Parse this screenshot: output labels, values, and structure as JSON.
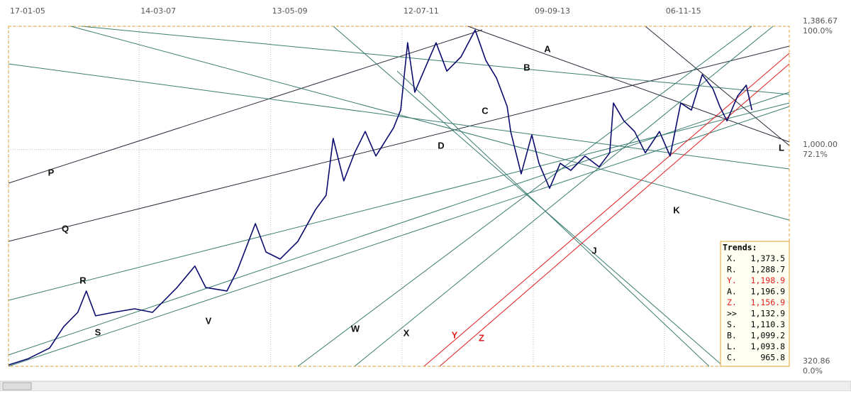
{
  "chart_data": {
    "type": "line",
    "x": [
      "2005-01-17",
      "2005-05-16",
      "2005-09-21",
      "2005-12-15",
      "2006-03-10",
      "2006-04-30",
      "2006-06-25",
      "2006-10-10",
      "2007-02-15",
      "2007-06-02",
      "2007-10-28",
      "2008-02-12",
      "2008-04-17",
      "2008-08-23",
      "2008-10-26",
      "2009-02-10",
      "2009-04-15",
      "2009-07-09",
      "2009-10-23",
      "2010-02-07",
      "2010-04-12",
      "2010-05-24",
      "2010-07-27",
      "2010-09-30",
      "2010-12-03",
      "2011-02-05",
      "2011-05-22",
      "2011-07-04",
      "2011-08-15",
      "2011-09-27",
      "2011-11-30",
      "2012-02-02",
      "2012-04-07",
      "2012-07-01",
      "2012-09-24",
      "2012-11-27",
      "2013-01-31",
      "2013-04-05",
      "2013-04-26",
      "2013-06-28",
      "2013-08-31",
      "2013-10-13",
      "2013-12-16",
      "2014-02-18",
      "2014-04-22",
      "2014-07-17",
      "2014-10-10",
      "2014-12-13",
      "2015-01-04",
      "2015-03-08",
      "2015-05-11",
      "2015-07-15",
      "2015-10-08",
      "2015-12-11",
      "2016-02-13",
      "2016-04-17",
      "2016-06-21",
      "2016-08-24",
      "2016-10-05",
      "2016-11-17",
      "2017-01-20",
      "2017-03-13",
      "2017-04-16"
    ],
    "series": [
      {
        "color": "#0b0b6e",
        "values": [
          325,
          345,
          378,
          445,
          490,
          557,
          479,
          490,
          501,
          490,
          568,
          635,
          568,
          557,
          623,
          768,
          679,
          657,
          712,
          812,
          857,
          1035,
          902,
          990,
          1057,
          980,
          1068,
          1124,
          1335,
          1180,
          1258,
          1335,
          1246,
          1291,
          1375,
          1280,
          1224,
          1135,
          1057,
          924,
          1046,
          957,
          879,
          957,
          935,
          980,
          946,
          990,
          1146,
          1090,
          1057,
          990,
          1057,
          980,
          1146,
          1124,
          1235,
          1191,
          1135,
          1090,
          1168,
          1202,
          1124
        ]
      }
    ],
    "xlim": [
      "2005-01-17",
      "2017-11-27"
    ],
    "xticks": [
      {
        "value": "2005-01-17",
        "label": "17-01-05"
      },
      {
        "value": "2007-03-14",
        "label": "14-03-07"
      },
      {
        "value": "2009-05-13",
        "label": "13-05-09"
      },
      {
        "value": "2011-07-12",
        "label": "12-07-11"
      },
      {
        "value": "2013-09-09",
        "label": "09-09-13"
      },
      {
        "value": "2015-11-06",
        "label": "06-11-15"
      }
    ],
    "ylim": [
      320.86,
      1386.67
    ],
    "yticks": [
      {
        "value": 320.86,
        "label": "320.86"
      },
      {
        "value": 1000,
        "label": "1,000.00"
      },
      {
        "value": 1386.67,
        "label": "1,386.67"
      }
    ],
    "ytick_percent_labels": [
      "0.0%",
      "72.1%",
      "100.0%"
    ],
    "grid": true,
    "annotations": [
      {
        "text": "A",
        "color": "#111"
      },
      {
        "text": "B",
        "color": "#111"
      },
      {
        "text": "C",
        "color": "#111"
      },
      {
        "text": "D",
        "color": "#111"
      },
      {
        "text": "L",
        "color": "#111"
      },
      {
        "text": "K",
        "color": "#111"
      },
      {
        "text": "J",
        "color": "#111"
      },
      {
        "text": "P",
        "color": "#111"
      },
      {
        "text": "Q",
        "color": "#111"
      },
      {
        "text": "R",
        "color": "#111"
      },
      {
        "text": "S",
        "color": "#111"
      },
      {
        "text": "V",
        "color": "#111"
      },
      {
        "text": "W",
        "color": "#111"
      },
      {
        "text": "X",
        "color": "#111"
      },
      {
        "text": "Y",
        "color": "#e02020"
      },
      {
        "text": "Z",
        "color": "#e02020"
      }
    ],
    "trends": {
      "title": "Trends:",
      "rows": [
        {
          "label": "X.",
          "value": "1,373.5",
          "color": "#000"
        },
        {
          "label": "R.",
          "value": "1,288.7",
          "color": "#000"
        },
        {
          "label": "Y.",
          "value": "1,198.9",
          "color": "#e02020"
        },
        {
          "label": "A.",
          "value": "1,196.9",
          "color": "#000"
        },
        {
          "label": "Z.",
          "value": "1,156.9",
          "color": "#e02020"
        },
        {
          "label": ">>",
          "value": "1,132.9",
          "color": "#000"
        },
        {
          "label": "S.",
          "value": "1,110.3",
          "color": "#000"
        },
        {
          "label": "B.",
          "value": "1,099.2",
          "color": "#000"
        },
        {
          "label": "L.",
          "value": "1,093.8",
          "color": "#000"
        },
        {
          "label": "C.",
          "value": "965.8",
          "color": "#000"
        }
      ]
    }
  }
}
